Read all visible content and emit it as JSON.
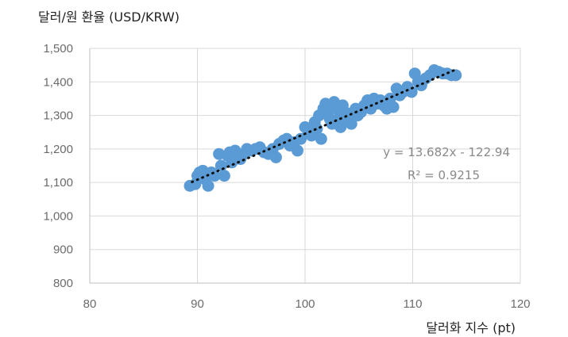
{
  "chart_data": {
    "type": "scatter",
    "y_title": "달러/원 환율 (USD/KRW)",
    "x_title": "달러화 지수 (pt)",
    "xlim": [
      80,
      120
    ],
    "ylim": [
      800,
      1500
    ],
    "x_ticks": [
      80,
      90,
      100,
      110,
      120
    ],
    "y_ticks": [
      800,
      900,
      1000,
      1100,
      1200,
      1300,
      1400,
      1500
    ],
    "y_tick_labels": [
      "800",
      "900",
      "1,000",
      "1,100",
      "1,200",
      "1,300",
      "1,400",
      "1,500"
    ],
    "grid": "horizontal",
    "point_color": "#5b9bd5",
    "trend_color": "#111111",
    "trendline": {
      "slope": 13.682,
      "intercept": -122.94,
      "x_range": [
        89.5,
        114
      ]
    },
    "equation_text": "y = 13.682x - 122.94",
    "r2_text": "R² = 0.9215",
    "points": [
      [
        89.3,
        1090
      ],
      [
        89.8,
        1095
      ],
      [
        90.0,
        1120
      ],
      [
        90.2,
        1130
      ],
      [
        90.5,
        1135
      ],
      [
        90.7,
        1110
      ],
      [
        91.0,
        1090
      ],
      [
        91.3,
        1130
      ],
      [
        91.6,
        1120
      ],
      [
        92.0,
        1185
      ],
      [
        92.2,
        1150
      ],
      [
        92.5,
        1120
      ],
      [
        92.8,
        1180
      ],
      [
        93.0,
        1190
      ],
      [
        93.2,
        1160
      ],
      [
        93.5,
        1195
      ],
      [
        93.8,
        1180
      ],
      [
        94.0,
        1170
      ],
      [
        94.3,
        1185
      ],
      [
        94.6,
        1200
      ],
      [
        95.0,
        1195
      ],
      [
        95.4,
        1200
      ],
      [
        95.8,
        1205
      ],
      [
        96.2,
        1190
      ],
      [
        96.6,
        1185
      ],
      [
        97.0,
        1200
      ],
      [
        97.3,
        1175
      ],
      [
        97.6,
        1215
      ],
      [
        98.0,
        1225
      ],
      [
        98.3,
        1230
      ],
      [
        98.6,
        1210
      ],
      [
        99.0,
        1220
      ],
      [
        99.3,
        1195
      ],
      [
        99.6,
        1230
      ],
      [
        100.0,
        1265
      ],
      [
        100.3,
        1250
      ],
      [
        100.6,
        1240
      ],
      [
        100.9,
        1280
      ],
      [
        101.1,
        1260
      ],
      [
        101.3,
        1300
      ],
      [
        101.5,
        1230
      ],
      [
        101.7,
        1320
      ],
      [
        101.9,
        1335
      ],
      [
        102.1,
        1310
      ],
      [
        102.3,
        1290
      ],
      [
        102.5,
        1275
      ],
      [
        102.7,
        1340
      ],
      [
        102.9,
        1320
      ],
      [
        103.1,
        1290
      ],
      [
        103.3,
        1265
      ],
      [
        103.5,
        1330
      ],
      [
        103.7,
        1310
      ],
      [
        103.9,
        1300
      ],
      [
        104.1,
        1285
      ],
      [
        104.3,
        1275
      ],
      [
        104.5,
        1310
      ],
      [
        104.7,
        1320
      ],
      [
        104.9,
        1300
      ],
      [
        105.2,
        1310
      ],
      [
        105.5,
        1330
      ],
      [
        105.8,
        1345
      ],
      [
        106.1,
        1320
      ],
      [
        106.4,
        1350
      ],
      [
        106.7,
        1335
      ],
      [
        107.0,
        1345
      ],
      [
        107.3,
        1330
      ],
      [
        107.6,
        1320
      ],
      [
        107.9,
        1350
      ],
      [
        108.2,
        1325
      ],
      [
        108.5,
        1380
      ],
      [
        108.8,
        1360
      ],
      [
        109.1,
        1370
      ],
      [
        109.5,
        1385
      ],
      [
        109.9,
        1370
      ],
      [
        110.2,
        1425
      ],
      [
        110.5,
        1400
      ],
      [
        110.8,
        1390
      ],
      [
        111.2,
        1410
      ],
      [
        111.6,
        1420
      ],
      [
        112.0,
        1435
      ],
      [
        112.4,
        1430
      ],
      [
        112.8,
        1425
      ],
      [
        113.2,
        1425
      ],
      [
        113.6,
        1420
      ],
      [
        114.0,
        1420
      ]
    ]
  }
}
